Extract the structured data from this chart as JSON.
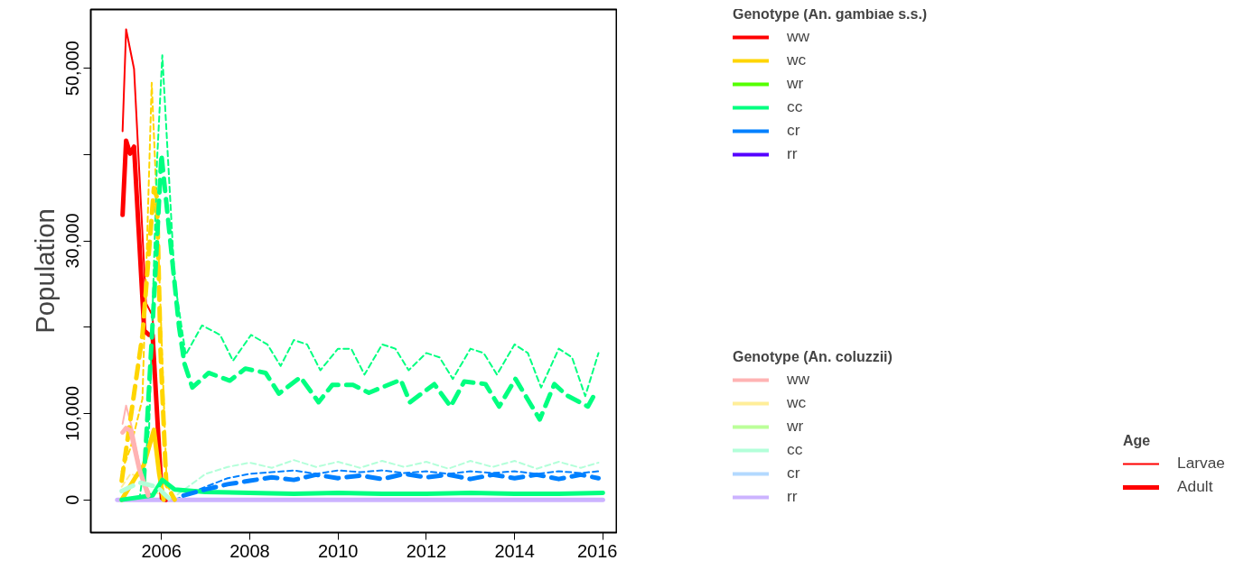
{
  "chart_data": {
    "type": "line",
    "ylabel": "Population",
    "xlim": [
      2004.4,
      2016.33
    ],
    "ylim": [
      -3800,
      56800
    ],
    "xticks": [
      2006,
      2008,
      2010,
      2012,
      2014,
      2016
    ],
    "yticks": [
      {
        "value": 0,
        "label": "0"
      },
      {
        "value": 10000,
        "label": "10,000"
      },
      {
        "value": 20000,
        "label": null
      },
      {
        "value": 30000,
        "label": "30,000"
      },
      {
        "value": 40000,
        "label": null
      },
      {
        "value": 50000,
        "label": "50,000"
      }
    ],
    "annotations": [
      "Genotype (An. gambiae s.s.)",
      "Genotype (An. coluzzii)",
      "Age",
      "Larvae",
      "Adult"
    ],
    "legend": "right",
    "grid": false,
    "series": [
      {
        "name": "ww",
        "color": "#ff0000",
        "line_style": "solid",
        "x": [
          2005.12,
          2005.2,
          2005.38,
          2005.65,
          2005.8,
          2005.98,
          2006.1
        ],
        "values": [
          42700,
          54500,
          49900,
          22800,
          21300,
          700,
          0
        ]
      },
      {
        "name": "wc",
        "color": "#ffd500",
        "line_style": "dashed",
        "x": [
          2005.1,
          2005.3,
          2005.57,
          2005.78,
          2005.9,
          2006.12,
          2006.3
        ],
        "values": [
          3300,
          6000,
          11700,
          48300,
          33800,
          1800,
          0
        ]
      },
      {
        "name": "wr",
        "color": "#55ff00"
      },
      {
        "name": "cc",
        "color": "#00ff80",
        "line_style": "dashed",
        "x": [
          2005.5,
          2005.72,
          2005.9,
          2006.02,
          2006.3,
          2006.55,
          2006.92,
          2007.33,
          2007.62,
          2008.03,
          2008.4,
          2008.7,
          2009.0,
          2009.3,
          2009.6,
          2010.0,
          2010.3,
          2010.6,
          2011.0,
          2011.3,
          2011.6,
          2012.0,
          2012.3,
          2012.6,
          2013.0,
          2013.3,
          2013.6,
          2014.0,
          2014.3,
          2014.6,
          2015.0,
          2015.3,
          2015.6,
          2015.9
        ],
        "values": [
          0,
          8100,
          39200,
          51500,
          25400,
          16800,
          20200,
          19100,
          16100,
          19100,
          18000,
          15500,
          18500,
          18000,
          15000,
          17500,
          17500,
          14500,
          18000,
          17500,
          15000,
          17000,
          16500,
          14000,
          17500,
          17000,
          14500,
          18000,
          17000,
          13000,
          17500,
          16500,
          12000,
          17000
        ]
      },
      {
        "name": "cr",
        "color": "#0080ff",
        "line_style": "dashed",
        "x": [
          2006.3,
          2007.0,
          2007.5,
          2008.0,
          2008.5,
          2009.0,
          2009.5,
          2010.0,
          2010.5,
          2011.0,
          2011.5,
          2012.0,
          2012.5,
          2013.0,
          2013.5,
          2014.0,
          2014.5,
          2015.0,
          2015.5,
          2015.9
        ],
        "values": [
          0,
          1500,
          2500,
          3000,
          3200,
          3400,
          3000,
          3400,
          3200,
          3400,
          3100,
          3300,
          3000,
          3300,
          3100,
          3300,
          3000,
          3300,
          3100,
          3300
        ]
      },
      {
        "name": "rr",
        "color": "#5500ff"
      },
      {
        "name": "ww",
        "color": "#ffb3b3",
        "line_style": "solid",
        "x": [
          2005.12,
          2005.2,
          2005.35,
          2005.55,
          2005.8
        ],
        "values": [
          8800,
          10900,
          8000,
          3000,
          0
        ]
      },
      {
        "name": "wc",
        "color": "#ffee99",
        "line_style": "dashed",
        "x": [
          2005.1,
          2005.3,
          2005.6,
          2005.9,
          2006.2
        ],
        "values": [
          1500,
          3000,
          2500,
          800,
          0
        ]
      },
      {
        "name": "wr",
        "color": "#bbff99"
      },
      {
        "name": "cc",
        "color": "#b3ffd9",
        "line_style": "dashed",
        "x": [
          2006.2,
          2007.0,
          2007.5,
          2008.0,
          2008.5,
          2009.0,
          2009.5,
          2010.0,
          2010.5,
          2011.0,
          2011.5,
          2012.0,
          2012.5,
          2013.0,
          2013.5,
          2014.0,
          2014.5,
          2015.0,
          2015.5,
          2015.9
        ],
        "values": [
          0,
          3000,
          3800,
          4300,
          3700,
          4600,
          3800,
          4400,
          3700,
          4500,
          3800,
          4400,
          3600,
          4500,
          3800,
          4500,
          3600,
          4400,
          3700,
          4300
        ]
      },
      {
        "name": "cr",
        "color": "#b3d9ff"
      },
      {
        "name": "rr",
        "color": "#ccb3ff",
        "line_style": "solid",
        "x": [
          2005,
          2016
        ],
        "values": [
          0,
          0
        ]
      },
      {
        "color": "#ff0000",
        "line_style": "solid",
        "x": [
          2005.12,
          2005.2,
          2005.29,
          2005.38,
          2005.61,
          2005.72,
          2005.8,
          2006.01,
          2006.1
        ],
        "values": [
          33000,
          41600,
          40100,
          40900,
          19600,
          19100,
          19100,
          200,
          0
        ]
      },
      {
        "color": "#ffd500",
        "line_style": "dashed",
        "x": [
          2005.1,
          2005.57,
          2005.83,
          2005.9,
          2005.98,
          2006.11,
          2006.3
        ],
        "values": [
          2200,
          19100,
          36100,
          35000,
          17200,
          1800,
          0
        ]
      },
      {
        "color": "#ffd500",
        "line_style": "solid",
        "x": [
          2005.1,
          2005.4,
          2005.6,
          2005.83,
          2005.95,
          2006.05
        ],
        "values": [
          0,
          2500,
          4000,
          8100,
          3000,
          0
        ]
      },
      {
        "color": "#00ff80",
        "line_style": "dashed",
        "x": [
          2005.6,
          2005.85,
          2006.0,
          2006.2,
          2006.4,
          2006.52,
          2006.7,
          2007.07,
          2007.55,
          2007.9,
          2008.36,
          2008.66,
          2009.15,
          2009.56,
          2009.87,
          2010.34,
          2010.7,
          2011.42,
          2011.63,
          2012.18,
          2012.55,
          2012.86,
          2013.34,
          2013.65,
          2014.02,
          2014.57,
          2014.9,
          2015.18,
          2015.66,
          2015.8
        ],
        "values": [
          2000,
          25000,
          40000,
          30000,
          20000,
          15800,
          13000,
          14700,
          13800,
          15200,
          14700,
          12300,
          14200,
          11300,
          13300,
          13300,
          12400,
          13900,
          11300,
          13400,
          10800,
          13700,
          13400,
          10800,
          14000,
          9300,
          13400,
          12100,
          10800,
          12100
        ]
      },
      {
        "color": "#00ff80",
        "line_style": "solid",
        "x": [
          2005.1,
          2005.8,
          2006.02,
          2006.3,
          2007,
          2008,
          2009,
          2010,
          2011,
          2012,
          2013,
          2014,
          2015,
          2016
        ],
        "values": [
          0,
          500,
          2300,
          1200,
          900,
          800,
          700,
          800,
          700,
          700,
          800,
          700,
          700,
          800
        ]
      },
      {
        "color": "#0080ff",
        "line_style": "dashed",
        "x": [
          2006.5,
          2007.0,
          2007.5,
          2008.0,
          2008.5,
          2009.0,
          2009.5,
          2010.0,
          2010.5,
          2011.0,
          2011.5,
          2012.0,
          2012.5,
          2013.0,
          2013.5,
          2014.0,
          2014.5,
          2015.0,
          2015.5,
          2015.9
        ],
        "values": [
          500,
          1200,
          1800,
          2200,
          2600,
          2300,
          2900,
          2500,
          2800,
          2400,
          3000,
          2600,
          2900,
          2400,
          2900,
          2500,
          2900,
          2400,
          2900,
          2500
        ]
      },
      {
        "color": "#ffb3b3",
        "line_style": "solid",
        "x": [
          2005.12,
          2005.2,
          2005.3,
          2005.5,
          2005.7
        ],
        "values": [
          7800,
          8300,
          8000,
          3500,
          500
        ]
      },
      {
        "color": "#b3ffd9",
        "line_style": "dashed",
        "x": [
          2005.1,
          2005.5,
          2005.9,
          2006.2
        ],
        "values": [
          1000,
          2000,
          1500,
          0
        ]
      }
    ]
  }
}
